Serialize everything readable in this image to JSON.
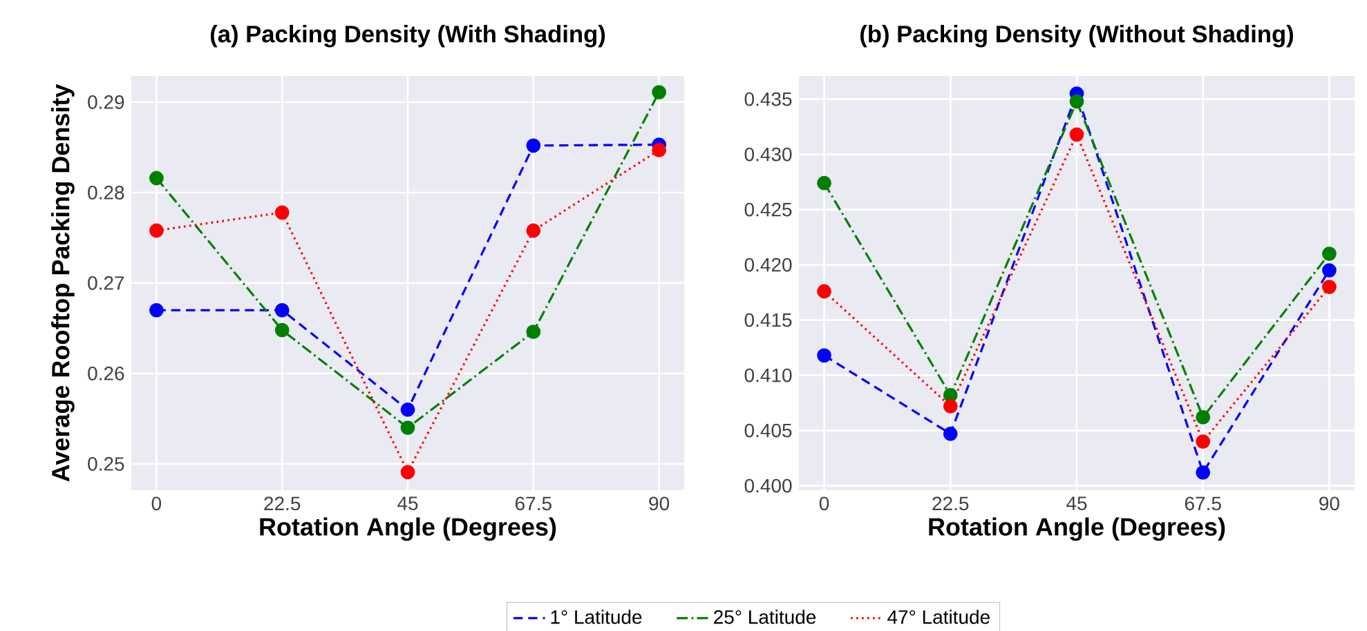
{
  "chart_data": [
    {
      "type": "line",
      "title": "(a) Packing Density (With Shading)",
      "xlabel": "Rotation Angle (Degrees)",
      "ylabel": "Average Rooftop Packing Density",
      "x": [
        0,
        22.5,
        45,
        67.5,
        90
      ],
      "series": [
        {
          "name": "1° Latitude",
          "color": "#0000ff",
          "line_style": "dashed",
          "values": [
            0.267,
            0.267,
            0.256,
            0.2852,
            0.2853
          ]
        },
        {
          "name": "25° Latitude",
          "color": "#008000",
          "line_style": "dashdot",
          "values": [
            0.2816,
            0.2648,
            0.254,
            0.2646,
            0.2911
          ]
        },
        {
          "name": "47° Latitude",
          "color": "#ff0000",
          "line_style": "dotted",
          "values": [
            0.2758,
            0.2778,
            0.2491,
            0.2758,
            0.2847
          ]
        }
      ],
      "xlim": [
        -4.5,
        94.5
      ],
      "xticks": [
        0,
        22.5,
        45,
        67.5,
        90
      ],
      "ylim": [
        0.2471,
        0.2929
      ],
      "yticks": [
        0.25,
        0.26,
        0.27,
        0.28,
        0.29
      ],
      "grid": true,
      "marker": "circle",
      "legend": "bottom"
    },
    {
      "type": "line",
      "title": "(b) Packing Density (Without Shading)",
      "xlabel": "Rotation Angle (Degrees)",
      "x": [
        0,
        22.5,
        45,
        67.5,
        90
      ],
      "series": [
        {
          "color": "#0000ff",
          "line_style": "dashed",
          "values": [
            0.4118,
            0.4047,
            0.4355,
            0.4012,
            0.4195
          ]
        },
        {
          "color": "#008000",
          "line_style": "dashdot",
          "values": [
            0.4274,
            0.4082,
            0.4348,
            0.4062,
            0.421
          ]
        },
        {
          "color": "#ff0000",
          "line_style": "dotted",
          "values": [
            0.4176,
            0.4072,
            0.4318,
            0.404,
            0.418
          ]
        }
      ],
      "xlim": [
        -4.5,
        94.5
      ],
      "xticks": [
        0,
        22.5,
        45,
        67.5,
        90
      ],
      "ylim": [
        0.3996,
        0.4371
      ],
      "yticks": [
        {
          "value": 0.4,
          "label": "0.400"
        },
        0.405,
        {
          "value": 0.41,
          "label": "0.410"
        },
        0.415,
        {
          "value": 0.42,
          "label": "0.420"
        },
        0.425,
        {
          "value": 0.43,
          "label": "0.430"
        },
        0.435
      ],
      "grid": true,
      "marker": "circle"
    }
  ]
}
